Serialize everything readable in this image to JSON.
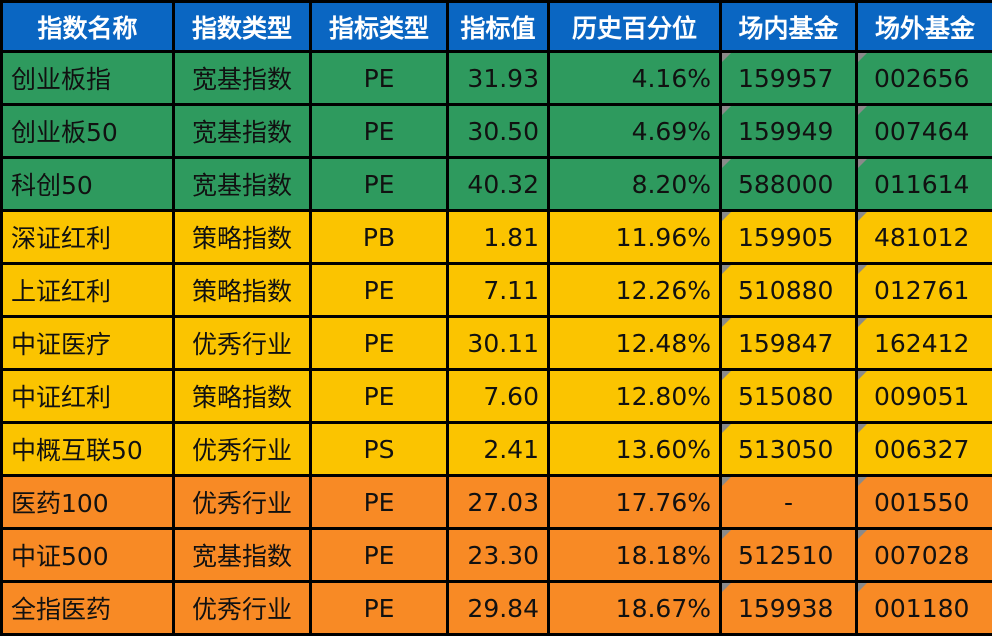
{
  "colors": {
    "header": "#0a66c2",
    "green": "#2e9a5e",
    "yellow": "#fbc400",
    "orange": "#f88a25",
    "border": "#000000",
    "comment_marker": "#8a8a8a"
  },
  "headers": [
    "指数名称",
    "指数类型",
    "指标类型",
    "指标值",
    "历史百分位",
    "场内基金",
    "场外基金"
  ],
  "rows": [
    {
      "group": "green",
      "name": "创业板指",
      "type": "宽基指数",
      "metric": "PE",
      "value": "31.93",
      "percentile": "4.16%",
      "onsite": "159957",
      "offsite": "002656"
    },
    {
      "group": "green",
      "name": "创业板50",
      "type": "宽基指数",
      "metric": "PE",
      "value": "30.50",
      "percentile": "4.69%",
      "onsite": "159949",
      "offsite": "007464"
    },
    {
      "group": "green",
      "name": "科创50",
      "type": "宽基指数",
      "metric": "PE",
      "value": "40.32",
      "percentile": "8.20%",
      "onsite": "588000",
      "offsite": "011614"
    },
    {
      "group": "yellow",
      "name": "深证红利",
      "type": "策略指数",
      "metric": "PB",
      "value": "1.81",
      "percentile": "11.96%",
      "onsite": "159905",
      "offsite": "481012"
    },
    {
      "group": "yellow",
      "name": "上证红利",
      "type": "策略指数",
      "metric": "PE",
      "value": "7.11",
      "percentile": "12.26%",
      "onsite": "510880",
      "offsite": "012761"
    },
    {
      "group": "yellow",
      "name": "中证医疗",
      "type": "优秀行业",
      "metric": "PE",
      "value": "30.11",
      "percentile": "12.48%",
      "onsite": "159847",
      "offsite": "162412"
    },
    {
      "group": "yellow",
      "name": "中证红利",
      "type": "策略指数",
      "metric": "PE",
      "value": "7.60",
      "percentile": "12.80%",
      "onsite": "515080",
      "offsite": "009051"
    },
    {
      "group": "yellow",
      "name": "中概互联50",
      "type": "优秀行业",
      "metric": "PS",
      "value": "2.41",
      "percentile": "13.60%",
      "onsite": "513050",
      "offsite": "006327"
    },
    {
      "group": "orange",
      "name": "医药100",
      "type": "优秀行业",
      "metric": "PE",
      "value": "27.03",
      "percentile": "17.76%",
      "onsite": "-",
      "offsite": "001550"
    },
    {
      "group": "orange",
      "name": "中证500",
      "type": "宽基指数",
      "metric": "PE",
      "value": "23.30",
      "percentile": "18.18%",
      "onsite": "512510",
      "offsite": "007028"
    },
    {
      "group": "orange",
      "name": "全指医药",
      "type": "优秀行业",
      "metric": "PE",
      "value": "29.84",
      "percentile": "18.67%",
      "onsite": "159938",
      "offsite": "001180"
    }
  ]
}
